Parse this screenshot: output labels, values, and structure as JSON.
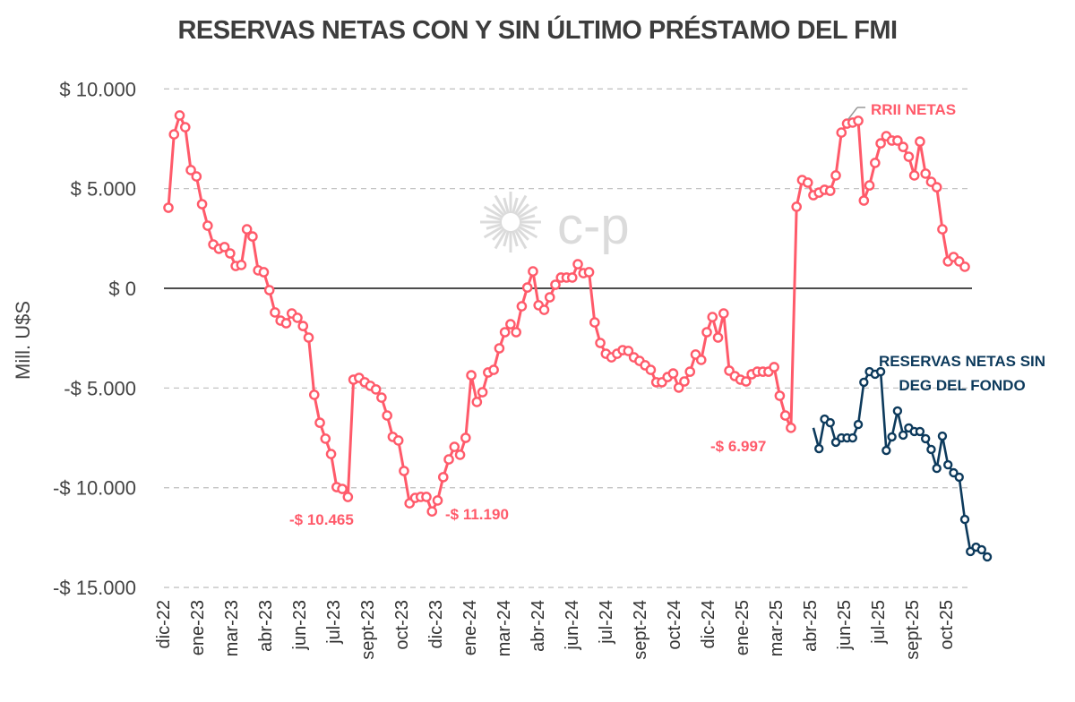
{
  "chart_data": {
    "type": "line",
    "title": "RESERVAS NETAS CON Y SIN ÚLTIMO PRÉSTAMO DEL FMI",
    "ylabel": "Mill. U$S",
    "xlabel": "",
    "ylim": [
      -15000,
      10000
    ],
    "yticks": [
      10000,
      5000,
      0,
      -5000,
      -10000,
      -15000
    ],
    "ytick_labels": [
      "$ 10.000",
      "$ 5.000",
      "$ 0",
      "-$ 5.000",
      "-$ 10.000",
      "-$ 15.000"
    ],
    "xtick_labels": [
      "dic-22",
      "ene-23",
      "mar-23",
      "abr-23",
      "jun-23",
      "jul-23",
      "sept-23",
      "oct-23",
      "dic-23",
      "ene-24",
      "mar-24",
      "abr-24",
      "jun-24",
      "jul-24",
      "sept-24",
      "oct-24",
      "dic-24",
      "ene-25",
      "mar-25",
      "abr-25",
      "jun-25",
      "jul-25",
      "sept-25",
      "oct-25"
    ],
    "grid": true,
    "series": [
      {
        "name": "RRII NETAS",
        "color": "#ff5a6a",
        "start_index": 0,
        "values": [
          4040,
          7720,
          8670,
          8080,
          5930,
          5610,
          4220,
          3140,
          2200,
          1980,
          2070,
          1750,
          1120,
          1170,
          2960,
          2600,
          900,
          810,
          -90,
          -1210,
          -1620,
          -1750,
          -1260,
          -1480,
          -1890,
          -2470,
          -5340,
          -6740,
          -7540,
          -8310,
          -9970,
          -10060,
          -10465,
          -4580,
          -4490,
          -4710,
          -4890,
          -5070,
          -5480,
          -6380,
          -7450,
          -7630,
          -9160,
          -10780,
          -10510,
          -10460,
          -10460,
          -11190,
          -10640,
          -9470,
          -8580,
          -7950,
          -8350,
          -7500,
          -4360,
          -5700,
          -5210,
          -4220,
          -4090,
          -3010,
          -2200,
          -1800,
          -2200,
          -900,
          40,
          850,
          -850,
          -1080,
          -450,
          180,
          540,
          540,
          540,
          1210,
          760,
          810,
          -1710,
          -2740,
          -3280,
          -3460,
          -3280,
          -3100,
          -3140,
          -3460,
          -3640,
          -3860,
          -4090,
          -4710,
          -4710,
          -4450,
          -4270,
          -4980,
          -4670,
          -4180,
          -3320,
          -3590,
          -2200,
          -1440,
          -2470,
          -1260,
          -4130,
          -4400,
          -4580,
          -4670,
          -4310,
          -4180,
          -4180,
          -4180,
          -3950,
          -5390,
          -6380,
          -6997,
          4090,
          5430,
          5300,
          4670,
          4800,
          4940,
          4890,
          5660,
          7810,
          8260,
          8310,
          8400,
          4400,
          5160,
          6290,
          7270,
          7630,
          7410,
          7410,
          7090,
          6600,
          5660,
          7360,
          5750,
          5340,
          5070,
          2960,
          1350,
          1570,
          1350,
          1080
        ]
      },
      {
        "name": "RESERVAS NETAS SIN DEG DEL FONDO",
        "color": "#0d3a5c",
        "start_index": 115,
        "values": [
          -6997,
          -8040,
          -6560,
          -6740,
          -7720,
          -7500,
          -7500,
          -7500,
          -6830,
          -4710,
          -4180,
          -4310,
          -4180,
          -8130,
          -7450,
          -6150,
          -7360,
          -7000,
          -7180,
          -7180,
          -7540,
          -8080,
          -9030,
          -7410,
          -8850,
          -9250,
          -9470,
          -11590,
          -13200,
          -12980,
          -13110,
          -13470
        ]
      }
    ],
    "annotations": {
      "min_2023": "-$ 10.465",
      "min_dic23": "-$ 11.190",
      "pre_loan": "-$ 6.997",
      "series1_label": "RRII NETAS",
      "series2_label_line1": "RESERVAS NETAS SIN",
      "series2_label_line2": "DEG DEL FONDO"
    },
    "watermark": "c-p"
  }
}
